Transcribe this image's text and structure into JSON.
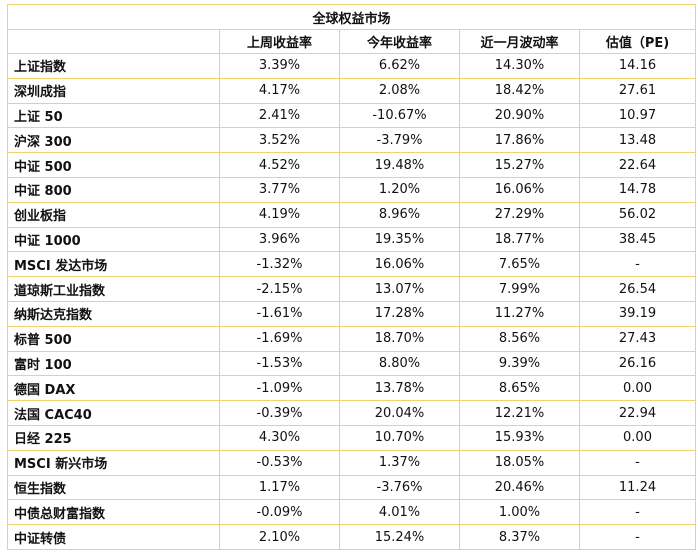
{
  "table": {
    "title": "全球权益市场",
    "headers": [
      "上周收益率",
      "今年收益率",
      "近一月波动率",
      "估值（PE)"
    ],
    "rows": [
      [
        "上证指数",
        "3.39%",
        "6.62%",
        "14.30%",
        "14.16"
      ],
      [
        "深圳成指",
        "4.17%",
        "2.08%",
        "18.42%",
        "27.61"
      ],
      [
        "上证 50",
        "2.41%",
        "-10.67%",
        "20.90%",
        "10.97"
      ],
      [
        "沪深 300",
        "3.52%",
        "-3.79%",
        "17.86%",
        "13.48"
      ],
      [
        "中证 500",
        "4.52%",
        "19.48%",
        "15.27%",
        "22.64"
      ],
      [
        "中证 800",
        "3.77%",
        "1.20%",
        "16.06%",
        "14.78"
      ],
      [
        "创业板指",
        "4.19%",
        "8.96%",
        "27.29%",
        "56.02"
      ],
      [
        "中证 1000",
        "3.96%",
        "19.35%",
        "18.77%",
        "38.45"
      ],
      [
        "MSCI 发达市场",
        "-1.32%",
        "16.06%",
        "7.65%",
        "-"
      ],
      [
        "道琼斯工业指数",
        "-2.15%",
        "13.07%",
        "7.99%",
        "26.54"
      ],
      [
        "纳斯达克指数",
        "-1.61%",
        "17.28%",
        "11.27%",
        "39.19"
      ],
      [
        "标普 500",
        "-1.69%",
        "18.70%",
        "8.56%",
        "27.43"
      ],
      [
        "富时 100",
        "-1.53%",
        "8.80%",
        "9.39%",
        "26.16"
      ],
      [
        "德国 DAX",
        "-1.09%",
        "13.78%",
        "8.65%",
        "0.00"
      ],
      [
        "法国 CAC40",
        "-0.39%",
        "20.04%",
        "12.21%",
        "22.94"
      ],
      [
        "日经 225",
        "4.30%",
        "10.70%",
        "15.93%",
        "0.00"
      ],
      [
        "MSCI 新兴市场",
        "-0.53%",
        "1.37%",
        "18.05%",
        "-"
      ],
      [
        "恒生指数",
        "1.17%",
        "-3.76%",
        "20.46%",
        "11.24"
      ],
      [
        "中债总财富指数",
        "-0.09%",
        "4.01%",
        "1.00%",
        "-"
      ],
      [
        "中证转债",
        "2.10%",
        "15.24%",
        "8.37%",
        "-"
      ]
    ]
  }
}
